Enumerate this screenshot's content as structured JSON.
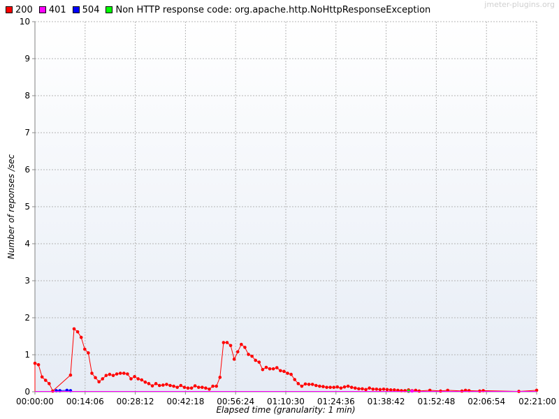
{
  "watermark": "jmeter-plugins.org",
  "legend": [
    {
      "label": "200",
      "color": "#ff0000"
    },
    {
      "label": "401",
      "color": "#ff00ff"
    },
    {
      "label": "504",
      "color": "#0000ff"
    },
    {
      "label": "Non HTTP response code: org.apache.http.NoHttpResponseException",
      "color": "#00ff00"
    }
  ],
  "chart_data": {
    "type": "line",
    "title": "",
    "xlabel": "Elapsed time (granularity: 1 min)",
    "ylabel": "Number of reponses /sec",
    "x_unit": "minutes",
    "xlim": [
      0,
      141
    ],
    "ylim": [
      0,
      10
    ],
    "y_ticks": [
      "0",
      "1",
      "2",
      "3",
      "4",
      "5",
      "6",
      "7",
      "8",
      "9",
      "10"
    ],
    "x_ticks": [
      {
        "min": 0,
        "label": "00:00:00"
      },
      {
        "min": 14.1,
        "label": "00:14:06"
      },
      {
        "min": 28.2,
        "label": "00:28:12"
      },
      {
        "min": 42.3,
        "label": "00:42:18"
      },
      {
        "min": 56.4,
        "label": "00:56:24"
      },
      {
        "min": 70.5,
        "label": "01:10:30"
      },
      {
        "min": 84.6,
        "label": "01:24:36"
      },
      {
        "min": 98.7,
        "label": "01:38:42"
      },
      {
        "min": 112.8,
        "label": "01:52:48"
      },
      {
        "min": 126.9,
        "label": "02:06:54"
      },
      {
        "min": 141.0,
        "label": "02:21:00"
      }
    ],
    "grid": true,
    "series": [
      {
        "name": "200",
        "color": "#ff0000",
        "points": [
          [
            0,
            0.77
          ],
          [
            1,
            0.73
          ],
          [
            2,
            0.4
          ],
          [
            3,
            0.31
          ],
          [
            4,
            0.22
          ],
          [
            5,
            0.02
          ],
          [
            10,
            0.45
          ],
          [
            11,
            1.7
          ],
          [
            12,
            1.62
          ],
          [
            13,
            1.47
          ],
          [
            14,
            1.15
          ],
          [
            15,
            1.05
          ],
          [
            16,
            0.5
          ],
          [
            17,
            0.38
          ],
          [
            18,
            0.27
          ],
          [
            19,
            0.35
          ],
          [
            20,
            0.44
          ],
          [
            21,
            0.47
          ],
          [
            22,
            0.44
          ],
          [
            23,
            0.48
          ],
          [
            24,
            0.5
          ],
          [
            25,
            0.5
          ],
          [
            26,
            0.48
          ],
          [
            27,
            0.35
          ],
          [
            28,
            0.41
          ],
          [
            29,
            0.35
          ],
          [
            30,
            0.32
          ],
          [
            31,
            0.26
          ],
          [
            32,
            0.22
          ],
          [
            33,
            0.16
          ],
          [
            34,
            0.22
          ],
          [
            35,
            0.17
          ],
          [
            36,
            0.18
          ],
          [
            37,
            0.2
          ],
          [
            38,
            0.17
          ],
          [
            39,
            0.15
          ],
          [
            40,
            0.12
          ],
          [
            41,
            0.17
          ],
          [
            42,
            0.12
          ],
          [
            43,
            0.1
          ],
          [
            44,
            0.1
          ],
          [
            45,
            0.16
          ],
          [
            46,
            0.12
          ],
          [
            47,
            0.12
          ],
          [
            48,
            0.1
          ],
          [
            49,
            0.07
          ],
          [
            50,
            0.15
          ],
          [
            51,
            0.15
          ],
          [
            52,
            0.39
          ],
          [
            53,
            1.33
          ],
          [
            54,
            1.33
          ],
          [
            55,
            1.25
          ],
          [
            56,
            0.88
          ],
          [
            57,
            1.08
          ],
          [
            58,
            1.28
          ],
          [
            59,
            1.2
          ],
          [
            60,
            1.01
          ],
          [
            61,
            0.96
          ],
          [
            62,
            0.85
          ],
          [
            63,
            0.8
          ],
          [
            64,
            0.6
          ],
          [
            65,
            0.66
          ],
          [
            66,
            0.62
          ],
          [
            67,
            0.62
          ],
          [
            68,
            0.65
          ],
          [
            69,
            0.57
          ],
          [
            70,
            0.55
          ],
          [
            71,
            0.5
          ],
          [
            72,
            0.47
          ],
          [
            73,
            0.33
          ],
          [
            74,
            0.22
          ],
          [
            75,
            0.15
          ],
          [
            76,
            0.21
          ],
          [
            77,
            0.2
          ],
          [
            78,
            0.2
          ],
          [
            79,
            0.17
          ],
          [
            80,
            0.15
          ],
          [
            81,
            0.14
          ],
          [
            82,
            0.12
          ],
          [
            83,
            0.12
          ],
          [
            84,
            0.12
          ],
          [
            85,
            0.13
          ],
          [
            86,
            0.1
          ],
          [
            87,
            0.13
          ],
          [
            88,
            0.15
          ],
          [
            89,
            0.12
          ],
          [
            90,
            0.1
          ],
          [
            91,
            0.08
          ],
          [
            92,
            0.08
          ],
          [
            93,
            0.06
          ],
          [
            94,
            0.1
          ],
          [
            95,
            0.07
          ],
          [
            96,
            0.07
          ],
          [
            97,
            0.06
          ],
          [
            98,
            0.07
          ],
          [
            99,
            0.06
          ],
          [
            100,
            0.05
          ],
          [
            101,
            0.05
          ],
          [
            102,
            0.04
          ],
          [
            103,
            0.03
          ],
          [
            104,
            0.03
          ],
          [
            105,
            0.05
          ],
          [
            106,
            0.03
          ],
          [
            107,
            0.04
          ],
          [
            108,
            0.02
          ],
          [
            111,
            0.04
          ],
          [
            114,
            0.02
          ],
          [
            116,
            0.04
          ],
          [
            120,
            0.02
          ],
          [
            121,
            0.04
          ],
          [
            122,
            0.03
          ],
          [
            125,
            0.02
          ],
          [
            126,
            0.03
          ],
          [
            136,
            0.01
          ],
          [
            141,
            0.04
          ]
        ]
      },
      {
        "name": "401",
        "color": "#ff00ff",
        "points": [
          [
            105,
            0.01
          ],
          [
            106,
            0.02
          ]
        ]
      },
      {
        "name": "504",
        "color": "#0000ff",
        "points": [
          [
            6,
            0.03
          ],
          [
            7,
            0.03
          ],
          [
            9,
            0.04
          ],
          [
            10,
            0.03
          ]
        ]
      },
      {
        "name": "Non HTTP response code: org.apache.http.NoHttpResponseException",
        "color": "#00ff00",
        "points": [
          [
            105,
            0.02
          ]
        ]
      }
    ]
  }
}
